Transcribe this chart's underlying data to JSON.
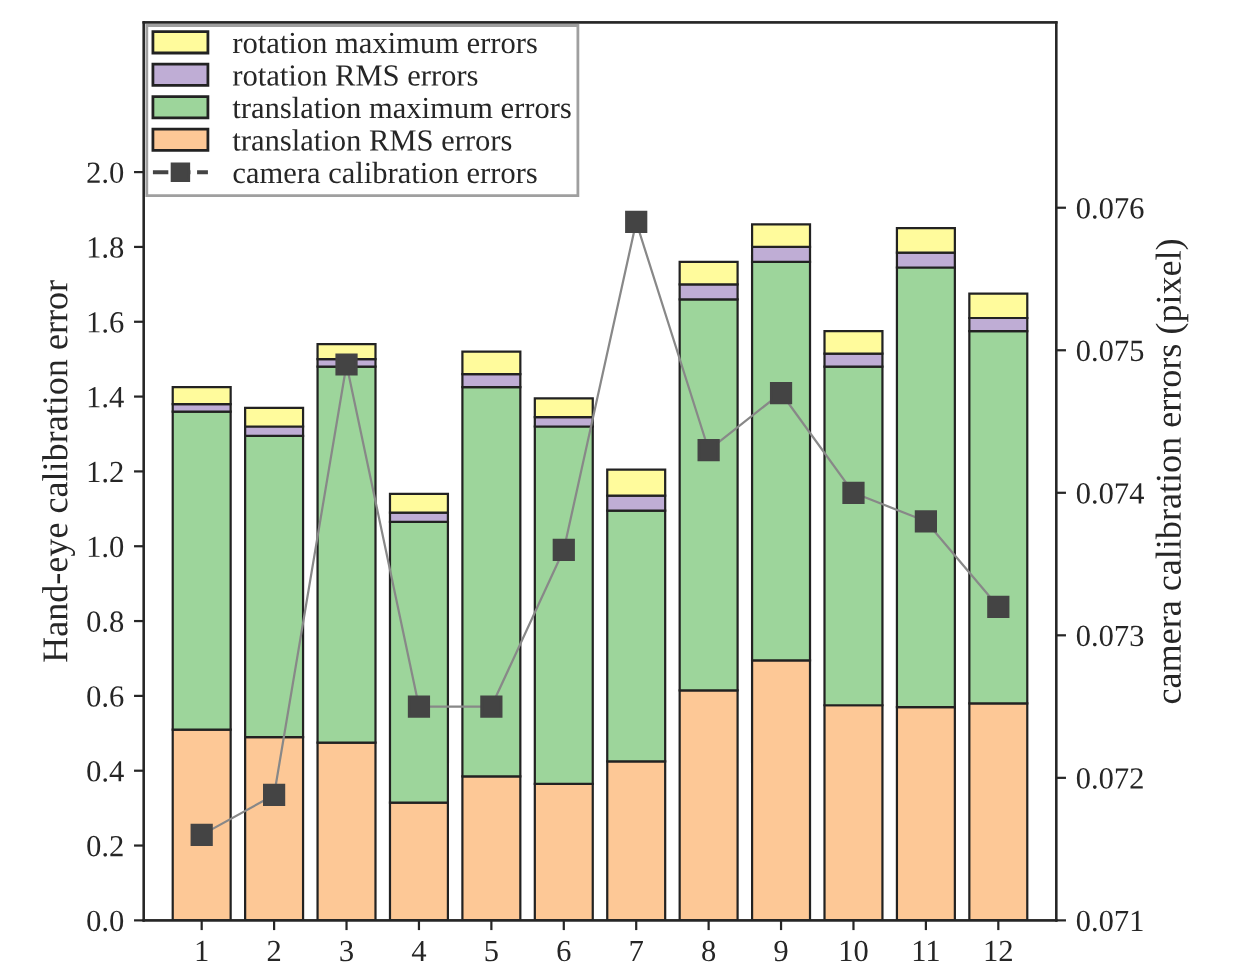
{
  "chart_data": {
    "type": "bar",
    "stacked": true,
    "ylabel": "Hand-eye calibration error",
    "y2label": "camera calibration errors (pixel)",
    "categories": [
      "1",
      "2",
      "3",
      "4",
      "5",
      "6",
      "7",
      "8",
      "9",
      "10",
      "11",
      "12"
    ],
    "series": [
      {
        "name": "translation RMS errors",
        "color": "#fdc896",
        "values": [
          0.51,
          0.49,
          0.475,
          0.315,
          0.385,
          0.365,
          0.425,
          0.615,
          0.695,
          0.575,
          0.57,
          0.58
        ]
      },
      {
        "name": "translation maximum errors",
        "color": "#9dd59b",
        "values": [
          0.85,
          0.805,
          1.005,
          0.75,
          1.04,
          0.955,
          0.67,
          1.045,
          1.065,
          0.905,
          1.175,
          0.995
        ]
      },
      {
        "name": "rotation RMS errors",
        "color": "#bfadd5",
        "values": [
          0.02,
          0.025,
          0.02,
          0.025,
          0.035,
          0.025,
          0.04,
          0.04,
          0.04,
          0.035,
          0.04,
          0.035
        ]
      },
      {
        "name": "rotation maximum errors",
        "color": "#fffb9c",
        "values": [
          0.045,
          0.05,
          0.04,
          0.05,
          0.06,
          0.05,
          0.07,
          0.06,
          0.06,
          0.06,
          0.065,
          0.065
        ]
      },
      {
        "name": "camera calibration errors",
        "type": "line",
        "axis": "y2",
        "color": "#444444",
        "marker": "square",
        "values": [
          0.0716,
          0.07188,
          0.0749,
          0.0725,
          0.0725,
          0.0736,
          0.0759,
          0.0743,
          0.0747,
          0.074,
          0.0738,
          0.0732
        ]
      }
    ],
    "ylim": [
      0,
      2.4
    ],
    "yticks": [
      {
        "value": 0,
        "label": "0.0"
      },
      0.2,
      0.4,
      0.6,
      0.8,
      {
        "value": 1,
        "label": "1.0"
      },
      1.2,
      1.4,
      1.6,
      1.8,
      {
        "value": 2,
        "label": "2.0"
      }
    ],
    "y2lim": [
      0.071,
      0.0773
    ],
    "y2ticks": [
      0.071,
      0.072,
      0.073,
      0.074,
      0.075,
      0.076
    ],
    "legend": "top left",
    "grid": false
  }
}
